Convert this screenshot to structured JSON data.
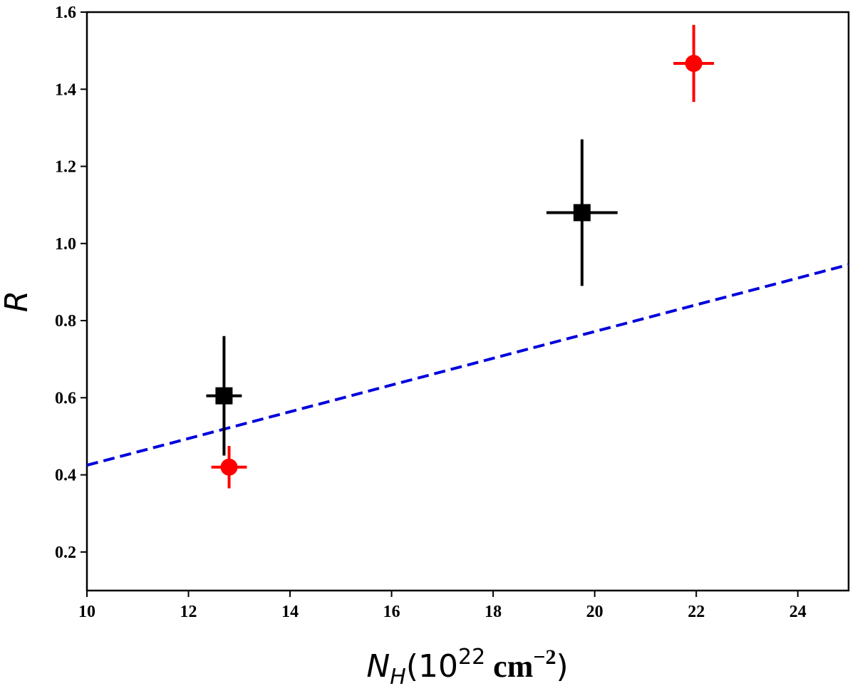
{
  "chart_data": {
    "type": "scatter",
    "title": "",
    "xlabel": "",
    "ylabel": "R",
    "xlabel_parts": {
      "symbol": "N",
      "subscript": "H",
      "open": "(10",
      "exponent": "22",
      "unit": " cm",
      "unit_exponent": "−2",
      "close": ")"
    },
    "xlim": [
      10,
      25
    ],
    "ylim": [
      0.1,
      1.6
    ],
    "xticks": [
      10,
      12,
      14,
      16,
      18,
      20,
      22,
      24
    ],
    "yticks": [
      0.2,
      0.4,
      0.6,
      0.8,
      1.0,
      1.2,
      1.4,
      1.6
    ],
    "xtick_labels": [
      "10",
      "12",
      "14",
      "16",
      "18",
      "20",
      "22",
      "24"
    ],
    "ytick_labels": [
      "0.2",
      "0.4",
      "0.6",
      "0.8",
      "1.0",
      "1.2",
      "1.4",
      "1.6"
    ],
    "grid": false,
    "series": [
      {
        "name": "black-squares",
        "marker": "square",
        "color": "#000000",
        "points": [
          {
            "x": 12.7,
            "y": 0.605,
            "xerr": [
              0.35,
              0.35
            ],
            "yerr": [
              0.155,
              0.155
            ]
          },
          {
            "x": 19.75,
            "y": 1.08,
            "xerr": [
              0.7,
              0.7
            ],
            "yerr": [
              0.19,
              0.19
            ]
          }
        ]
      },
      {
        "name": "red-circles",
        "marker": "circle",
        "color": "#ff0000",
        "points": [
          {
            "x": 12.8,
            "y": 0.42,
            "xerr": [
              0.35,
              0.35
            ],
            "yerr": [
              0.055,
              0.055
            ]
          },
          {
            "x": 21.95,
            "y": 1.467,
            "xerr": [
              0.4,
              0.4
            ],
            "yerr": [
              0.1,
              0.1
            ]
          }
        ]
      }
    ],
    "lines": [
      {
        "name": "fit-line",
        "style": "dashed",
        "color": "#0000dd",
        "x": [
          10,
          25
        ],
        "y": [
          0.425,
          0.945
        ]
      }
    ]
  }
}
